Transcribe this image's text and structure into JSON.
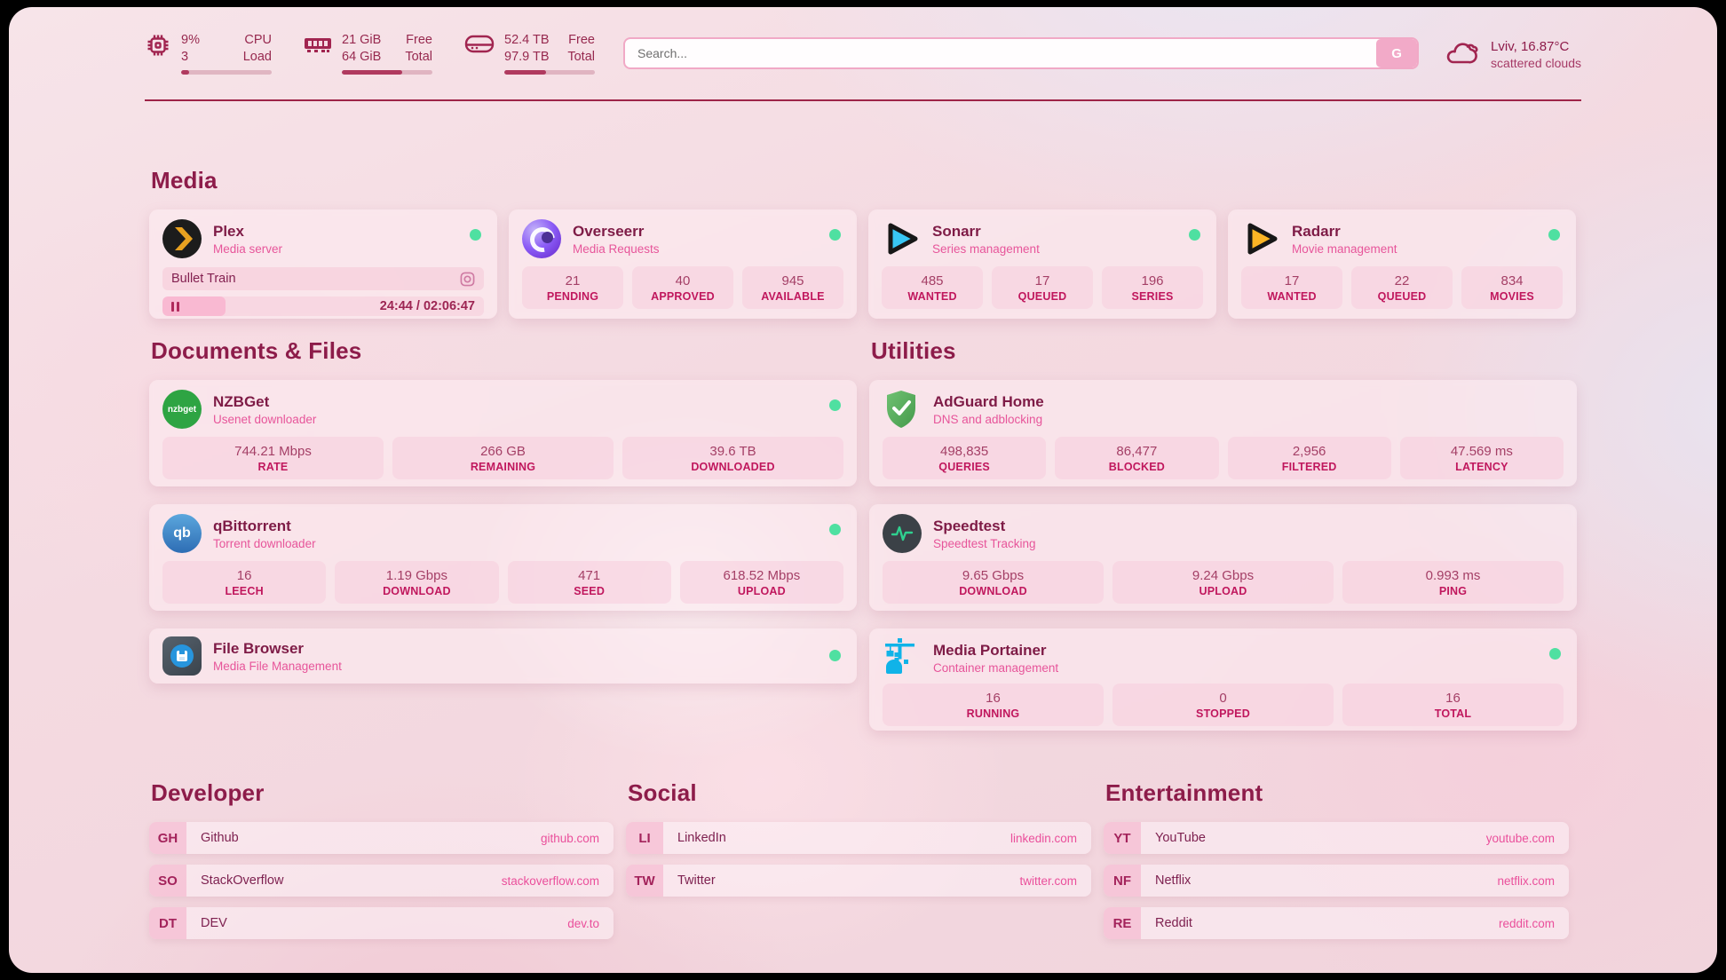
{
  "header": {
    "cpu": {
      "rows": [
        {
          "value": "9%",
          "label": "CPU"
        },
        {
          "value": "3",
          "label": "Load"
        }
      ],
      "progress": 9
    },
    "ram": {
      "rows": [
        {
          "value": "21 GiB",
          "label": "Free"
        },
        {
          "value": "64 GiB",
          "label": "Total"
        }
      ],
      "progress": 67
    },
    "disk": {
      "rows": [
        {
          "value": "52.4 TB",
          "label": "Free"
        },
        {
          "value": "97.9 TB",
          "label": "Total"
        }
      ],
      "progress": 46
    },
    "search": {
      "placeholder": "Search...",
      "engine_button": "G"
    },
    "weather": {
      "location": "Lviv, 16.87°C",
      "condition": "scattered clouds"
    }
  },
  "media": {
    "title": "Media",
    "plex": {
      "name": "Plex",
      "desc": "Media server",
      "now_playing": "Bullet Train",
      "time": "24:44 / 02:06:47",
      "progress": 19.5
    },
    "overseerr": {
      "name": "Overseerr",
      "desc": "Media Requests",
      "stats": [
        {
          "value": "21",
          "label": "PENDING"
        },
        {
          "value": "40",
          "label": "APPROVED"
        },
        {
          "value": "945",
          "label": "AVAILABLE"
        }
      ]
    },
    "sonarr": {
      "name": "Sonarr",
      "desc": "Series management",
      "stats": [
        {
          "value": "485",
          "label": "WANTED"
        },
        {
          "value": "17",
          "label": "QUEUED"
        },
        {
          "value": "196",
          "label": "SERIES"
        }
      ]
    },
    "radarr": {
      "name": "Radarr",
      "desc": "Movie management",
      "stats": [
        {
          "value": "17",
          "label": "WANTED"
        },
        {
          "value": "22",
          "label": "QUEUED"
        },
        {
          "value": "834",
          "label": "MOVIES"
        }
      ]
    }
  },
  "documents": {
    "title": "Documents & Files",
    "nzbget": {
      "name": "NZBGet",
      "desc": "Usenet downloader",
      "icon_text": "nzbget",
      "stats": [
        {
          "value": "744.21 Mbps",
          "label": "RATE"
        },
        {
          "value": "266 GB",
          "label": "REMAINING"
        },
        {
          "value": "39.6 TB",
          "label": "DOWNLOADED"
        }
      ]
    },
    "qbittorrent": {
      "name": "qBittorrent",
      "desc": "Torrent downloader",
      "icon_text": "qb",
      "stats": [
        {
          "value": "16",
          "label": "LEECH"
        },
        {
          "value": "1.19 Gbps",
          "label": "DOWNLOAD"
        },
        {
          "value": "471",
          "label": "SEED"
        },
        {
          "value": "618.52 Mbps",
          "label": "UPLOAD"
        }
      ]
    },
    "filebrowser": {
      "name": "File Browser",
      "desc": "Media File Management"
    }
  },
  "utilities": {
    "title": "Utilities",
    "adguard": {
      "name": "AdGuard Home",
      "desc": "DNS and adblocking",
      "stats": [
        {
          "value": "498,835",
          "label": "QUERIES"
        },
        {
          "value": "86,477",
          "label": "BLOCKED"
        },
        {
          "value": "2,956",
          "label": "FILTERED"
        },
        {
          "value": "47.569 ms",
          "label": "LATENCY"
        }
      ]
    },
    "speedtest": {
      "name": "Speedtest",
      "desc": "Speedtest Tracking",
      "stats": [
        {
          "value": "9.65 Gbps",
          "label": "DOWNLOAD"
        },
        {
          "value": "9.24 Gbps",
          "label": "UPLOAD"
        },
        {
          "value": "0.993 ms",
          "label": "PING"
        }
      ]
    },
    "portainer": {
      "name": "Media Portainer",
      "desc": "Container management",
      "stats": [
        {
          "value": "16",
          "label": "RUNNING"
        },
        {
          "value": "0",
          "label": "STOPPED"
        },
        {
          "value": "16",
          "label": "TOTAL"
        }
      ]
    }
  },
  "bookmarks": {
    "developer": {
      "title": "Developer",
      "links": [
        {
          "abbr": "GH",
          "name": "Github",
          "url": "github.com"
        },
        {
          "abbr": "SO",
          "name": "StackOverflow",
          "url": "stackoverflow.com"
        },
        {
          "abbr": "DT",
          "name": "DEV",
          "url": "dev.to"
        }
      ]
    },
    "social": {
      "title": "Social",
      "links": [
        {
          "abbr": "LI",
          "name": "LinkedIn",
          "url": "linkedin.com"
        },
        {
          "abbr": "TW",
          "name": "Twitter",
          "url": "twitter.com"
        }
      ]
    },
    "entertainment": {
      "title": "Entertainment",
      "links": [
        {
          "abbr": "YT",
          "name": "YouTube",
          "url": "youtube.com"
        },
        {
          "abbr": "NF",
          "name": "Netflix",
          "url": "netflix.com"
        },
        {
          "abbr": "RE",
          "name": "Reddit",
          "url": "reddit.com"
        }
      ]
    }
  },
  "colors": {
    "accent": "#9e2448",
    "status_green": "#4fe0a1",
    "url_pink": "#ea4f9b"
  }
}
